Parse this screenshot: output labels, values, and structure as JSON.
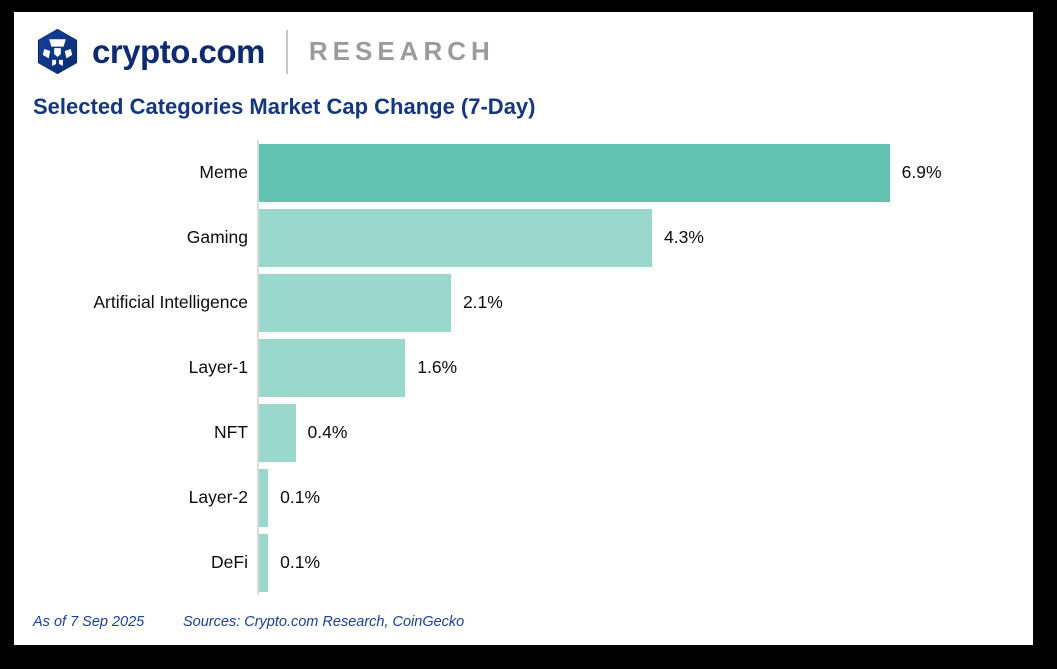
{
  "header": {
    "brand": "crypto.com",
    "suffix": "RESEARCH",
    "logo_icon": "crypto-com-hexagon-emblem"
  },
  "title": "Selected Categories Market Cap Change (7-Day)",
  "chart_data": {
    "type": "bar",
    "orientation": "horizontal",
    "title": "Selected Categories Market Cap Change (7-Day)",
    "categories": [
      "Meme",
      "Gaming",
      "Artificial Intelligence",
      "Layer-1",
      "NFT",
      "Layer-2",
      "DeFi"
    ],
    "values": [
      6.9,
      4.3,
      2.1,
      1.6,
      0.4,
      0.1,
      0.1
    ],
    "value_labels": [
      "6.9%",
      "4.3%",
      "2.1%",
      "1.6%",
      "0.4%",
      "0.1%",
      "0.1%"
    ],
    "xlabel": "",
    "ylabel": "",
    "xlim": [
      0,
      7.6
    ],
    "grid": false,
    "legend": false,
    "bar_colors": {
      "first": "#63C3B2",
      "rest": "#9AD8CC"
    },
    "axis_line_color": "#DBDBDB",
    "value_label_color": "#0d0d0d"
  },
  "footer": {
    "as_of": "As of 7 Sep 2025",
    "sources": "Sources: Crypto.com Research, CoinGecko"
  },
  "colors": {
    "brand_navy": "#0D2B6E",
    "title_navy": "#14377F",
    "research_gray": "#9B9B9B",
    "footer_blue": "#1C3F97",
    "frame": "#000000",
    "card_bg": "#FFFFFF"
  }
}
